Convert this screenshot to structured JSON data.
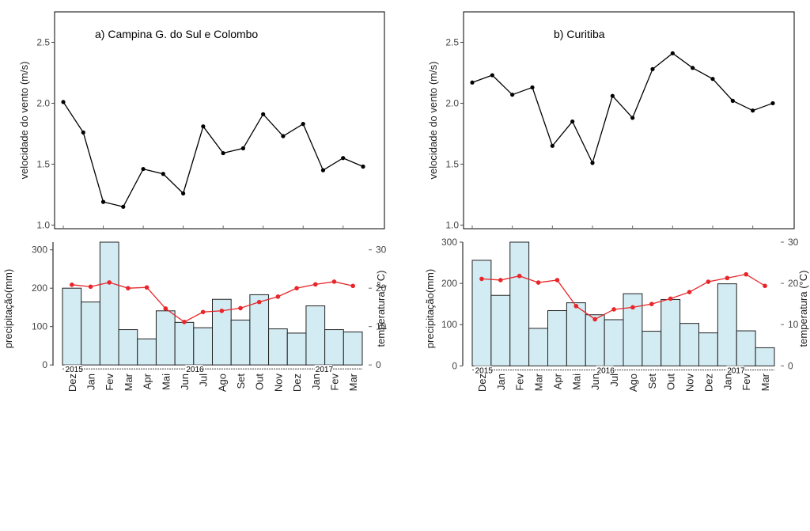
{
  "months": [
    "Dez",
    "Jan",
    "Fev",
    "Mar",
    "Apr",
    "Mai",
    "Jun",
    "Jul",
    "Ago",
    "Set",
    "Out",
    "Nov",
    "Dez",
    "Jan",
    "Fev",
    "Mar"
  ],
  "years": [
    "2015",
    "2016",
    "2017"
  ],
  "labels": {
    "wind_ylabel": "velocidade do vento (m/s)",
    "precip_ylabel": "precipitação(mm)",
    "temp_ylabel": "temperatura (°C)"
  },
  "colors": {
    "bar_fill": "#d3ebf2",
    "bar_stroke": "#222222",
    "temp_line": "#e8262a",
    "wind_line": "#000000"
  },
  "chart_data": [
    {
      "type": "line",
      "title": "a) Campina G. do Sul e Colombo",
      "ylabel": "velocidade do vento (m/s)",
      "ylim": [
        0.97,
        2.75
      ],
      "yticks": [
        1.0,
        1.5,
        2.0,
        2.5
      ],
      "series": [
        {
          "values": [
            2.01,
            1.76,
            1.19,
            1.15,
            1.46,
            1.42,
            1.26,
            1.81,
            1.59,
            1.63,
            1.91,
            1.73,
            1.83,
            1.45,
            1.55,
            1.48
          ]
        }
      ],
      "grid": false
    },
    {
      "type": "line",
      "title": "b) Curitiba",
      "ylabel": "velocidade do vento (m/s)",
      "ylim": [
        0.97,
        2.75
      ],
      "yticks": [
        1.0,
        1.5,
        2.0,
        2.5
      ],
      "series": [
        {
          "values": [
            2.17,
            2.23,
            2.07,
            2.13,
            1.65,
            1.85,
            1.51,
            2.06,
            1.88,
            2.28,
            2.41,
            2.29,
            2.2,
            2.02,
            1.94,
            2.0
          ]
        }
      ],
      "grid": false
    },
    {
      "type": "bar",
      "ylabel": "precipitação(mm)",
      "y2label": "temperatura (°C)",
      "ylim": [
        -10,
        320
      ],
      "yticks": [
        0,
        100,
        200,
        300
      ],
      "y2ticks": [
        0,
        10,
        20,
        30
      ],
      "series": [
        {
          "kind": "bar",
          "values": [
            200,
            164,
            320,
            92,
            68,
            141,
            111,
            97,
            171,
            117,
            183,
            94,
            83,
            154,
            92,
            86
          ]
        },
        {
          "kind": "line",
          "axis": "right",
          "values": [
            20.9,
            20.4,
            21.5,
            20.0,
            20.2,
            14.7,
            11.2,
            13.8,
            14.1,
            14.8,
            16.4,
            17.8,
            20.0,
            21.0,
            21.7,
            20.6
          ]
        }
      ],
      "grid": false
    },
    {
      "type": "bar",
      "ylabel": "precipitação(mm)",
      "y2label": "temperatura (°C)",
      "ylim": [
        -7,
        300
      ],
      "yticks": [
        0,
        100,
        200,
        300
      ],
      "y2ticks": [
        0,
        10,
        20,
        30
      ],
      "series": [
        {
          "kind": "bar",
          "values": [
            256,
            171,
            300,
            91,
            134,
            153,
            124,
            112,
            175,
            84,
            161,
            103,
            80,
            199,
            85,
            44
          ]
        },
        {
          "kind": "line",
          "axis": "right",
          "values": [
            21.1,
            20.8,
            21.8,
            20.2,
            20.8,
            14.5,
            11.3,
            13.7,
            14.2,
            15.0,
            16.3,
            17.9,
            20.4,
            21.3,
            22.2,
            19.4
          ]
        }
      ],
      "grid": false
    }
  ]
}
